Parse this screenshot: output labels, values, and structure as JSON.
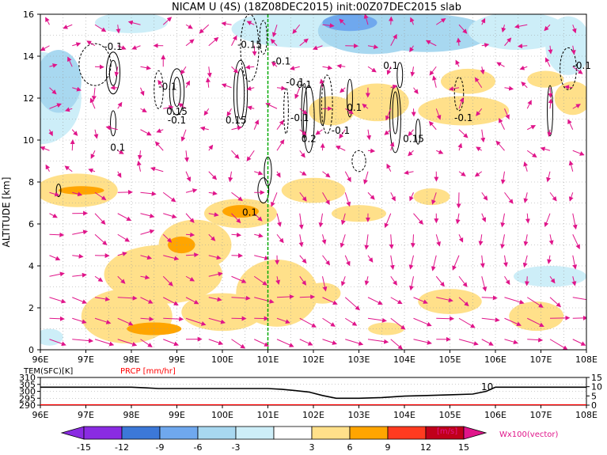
{
  "header": {
    "title": "NICAM U (4S) (18Z08DEC2015) init:00Z07DEC2015 slab"
  },
  "colors": {
    "shade_neg": [
      "#8a2be2",
      "#3c78d8",
      "#6fa8ee",
      "#a8d8f0",
      "#cdeef8"
    ],
    "shade_pos": [
      "#ffe08a",
      "#ffa500",
      "#ff3b1f",
      "#c0001a",
      "#e0158a"
    ],
    "vector": "#e0158a",
    "temp_line": "#000000",
    "prcp_line": "#ff0000",
    "marker_line": "#00aa00"
  },
  "chart_data": [
    {
      "type": "heatmap",
      "title": "NICAM U (4S) (18Z08DEC2015) init:00Z07DEC2015 slab",
      "ylabel": "ALTITUDE [km]",
      "xlim": [
        96,
        108
      ],
      "ylim": [
        0,
        16
      ],
      "x_ticks": [
        "96E",
        "97E",
        "98E",
        "99E",
        "100E",
        "101E",
        "102E",
        "103E",
        "104E",
        "105E",
        "106E",
        "107E",
        "108E"
      ],
      "y_ticks": [
        "0",
        "2",
        "4",
        "6",
        "8",
        "10",
        "12",
        "14",
        "16"
      ],
      "grid": true,
      "marker_lon": 101.0,
      "contour_labels": [
        {
          "text": "-0.1",
          "lon": 97.6,
          "alt": 14.3
        },
        {
          "text": "-0.1",
          "lon": 98.8,
          "alt": 12.4
        },
        {
          "text": "0.15",
          "lon": 99.0,
          "alt": 11.2
        },
        {
          "text": "-0.1",
          "lon": 99.0,
          "alt": 10.8
        },
        {
          "text": "-0.15",
          "lon": 100.6,
          "alt": 14.4
        },
        {
          "text": "-0.1",
          "lon": 101.3,
          "alt": 13.6
        },
        {
          "text": "0.15",
          "lon": 100.3,
          "alt": 10.8
        },
        {
          "text": "-0.1",
          "lon": 101.7,
          "alt": 10.9
        },
        {
          "text": "0.1",
          "lon": 101.8,
          "alt": 12.5
        },
        {
          "text": "0.2",
          "lon": 101.9,
          "alt": 9.9
        },
        {
          "text": "-0.1",
          "lon": 102.6,
          "alt": 10.3
        },
        {
          "text": "0.1",
          "lon": 102.9,
          "alt": 11.4
        },
        {
          "text": "0.1",
          "lon": 103.7,
          "alt": 13.4
        },
        {
          "text": "0.15",
          "lon": 104.2,
          "alt": 9.9
        },
        {
          "text": "-0.1",
          "lon": 105.3,
          "alt": 10.9
        },
        {
          "text": "0.1",
          "lon": 97.7,
          "alt": 9.5
        },
        {
          "text": "0.1",
          "lon": 100.6,
          "alt": 6.4
        },
        {
          "text": "-0.1",
          "lon": 107.9,
          "alt": 13.4
        },
        {
          "text": "-0.1",
          "lon": 101.6,
          "alt": 12.6
        }
      ]
    },
    {
      "type": "line",
      "labels": {
        "temp": "TEM(SFC)[K]",
        "prcp": "PRCP [mm/hr]"
      },
      "x_ticks": [
        "96E",
        "97E",
        "98E",
        "99E",
        "100E",
        "101E",
        "102E",
        "103E",
        "104E",
        "105E",
        "106E",
        "107E",
        "108E"
      ],
      "left_ticks": [
        "310",
        "305",
        "300",
        "295",
        "290"
      ],
      "right_ticks": [
        "15",
        "10",
        "5",
        "0"
      ],
      "left_range": [
        290,
        310
      ],
      "right_range": [
        0,
        15
      ],
      "annotation": "10",
      "series": [
        {
          "name": "TEM(SFC)[K]",
          "x": [
            96,
            96.5,
            97,
            97.5,
            98,
            98.3,
            98.6,
            99,
            99.5,
            100,
            100.5,
            101,
            101.3,
            101.6,
            101.9,
            102.2,
            102.5,
            103,
            103.5,
            104,
            104.5,
            105,
            105.5,
            105.8,
            106,
            106.5,
            107,
            107.5,
            108
          ],
          "values": [
            303,
            303,
            303,
            303,
            303,
            302.5,
            302,
            302,
            302,
            302,
            302,
            302,
            301.5,
            300.5,
            299.5,
            297,
            295,
            295,
            295.5,
            296.5,
            297,
            297.5,
            298,
            300,
            303,
            303,
            303,
            303,
            303
          ]
        },
        {
          "name": "PRCP [mm/hr]",
          "x": [
            96,
            108
          ],
          "values": [
            0,
            0
          ]
        }
      ]
    },
    {
      "type": "bar",
      "title": "",
      "categories": [
        "-15",
        "-12",
        "-9",
        "-6",
        "-3",
        "3",
        "6",
        "9",
        "12",
        "15"
      ],
      "units": "[m/s]",
      "vector_label": "Wx100(vector)"
    }
  ]
}
